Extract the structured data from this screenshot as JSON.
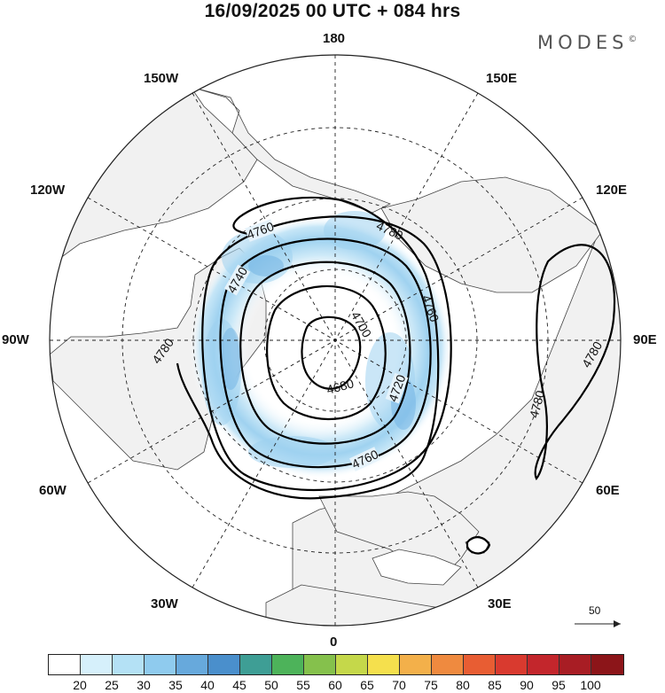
{
  "title": "16/09/2025  00 UTC  + 084 hrs",
  "brand": "MODES",
  "brand_mark": "©",
  "longitude_labels": {
    "top": "180",
    "bottom": "0",
    "left": "90W",
    "right": "90E",
    "nw_150": "150W",
    "ne_150": "150E",
    "w_120": "120W",
    "e_120": "120E",
    "w_60": "60W",
    "e_60": "60E",
    "sw_30": "30W",
    "se_30": "30E"
  },
  "contours": {
    "c4680": "4680",
    "c4700": "4700",
    "c4720": "4720",
    "c4740": "4740",
    "c4760": "4760",
    "c4780": "4780"
  },
  "vector_reference": "50",
  "colorbar": {
    "colors": [
      "#ffffff",
      "#d6f0fb",
      "#b4e1f5",
      "#8fcbee",
      "#67a9dc",
      "#4a8fcc",
      "#3e9e95",
      "#4db35a",
      "#85c14c",
      "#c5d84a",
      "#f5e04d",
      "#f3b04a",
      "#ef8a3f",
      "#e85d33",
      "#d93a2f",
      "#c3262c",
      "#a81d24",
      "#8c1519"
    ],
    "ticks": [
      "20",
      "25",
      "30",
      "35",
      "40",
      "45",
      "50",
      "55",
      "60",
      "65",
      "70",
      "75",
      "80",
      "85",
      "90",
      "95",
      "100"
    ]
  }
}
